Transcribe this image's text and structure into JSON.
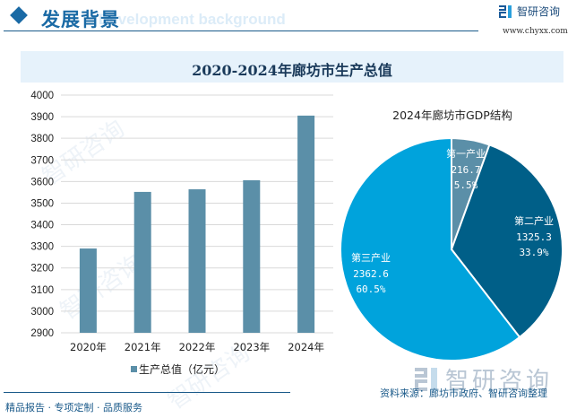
{
  "header": {
    "title": "发展背景",
    "subtitle": "Development background",
    "brand_name": "智研咨询",
    "brand_url": "www.chyxx.com"
  },
  "chart_title": "2020-2024年廊坊市生产总值",
  "footer": {
    "tagline": "精品报告 · 专项定制 · 品质服务",
    "source": "资料来源：廊坊市政府、智研咨询整理",
    "watermark_brand": "智研咨询"
  },
  "colors": {
    "bar": "#5b8fa8",
    "primary": "#1a6aa5",
    "pie": [
      "#5b8fa8",
      "#005f88",
      "#00a3dc"
    ]
  },
  "chart_data": [
    {
      "type": "bar",
      "title": "2020-2024年廊坊市生产总值",
      "categories": [
        "2020年",
        "2021年",
        "2022年",
        "2023年",
        "2024年"
      ],
      "values": [
        3290,
        3552,
        3564,
        3606,
        3905
      ],
      "ylim": [
        2900,
        4000
      ],
      "yticks": [
        2900,
        3000,
        3100,
        3200,
        3300,
        3400,
        3500,
        3600,
        3700,
        3800,
        3900,
        4000
      ],
      "ytick_labels": [
        "2900",
        "3000",
        "3100",
        "3200",
        "3300",
        "3400",
        "3500",
        "3600",
        "3700",
        "3800",
        "3900",
        "4000"
      ],
      "series_name": "生产总值（亿元）",
      "legend": "bottom",
      "grid": true
    },
    {
      "type": "pie",
      "title": "2024年廊坊市GDP结构",
      "slices": [
        {
          "label": "第一产业",
          "value": 216.7,
          "value_label": "216.7",
          "percent": "5.5%"
        },
        {
          "label": "第二产业",
          "value": 1325.3,
          "value_label": "1325.3",
          "percent": "33.9%"
        },
        {
          "label": "第三产业",
          "value": 2362.6,
          "value_label": "2362.6",
          "percent": "60.5%"
        }
      ]
    }
  ]
}
